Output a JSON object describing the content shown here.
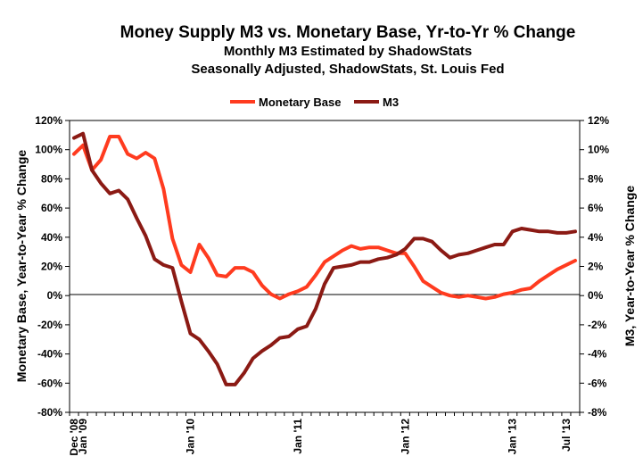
{
  "chart_data": {
    "type": "line",
    "title": "Money Supply M3 vs. Monetary Base, Yr-to-Yr % Change",
    "subtitle_1": "Monthly M3 Estimated by ShadowStats",
    "subtitle_2": "Seasonally Adjusted, ShadowStats, St. Louis Fed",
    "x_tick_labels": [
      "Dec '08",
      "Jan '09",
      "Jan '10",
      "Jan '11",
      "Jan '12",
      "Jan '13",
      "Jul '13"
    ],
    "x_tick_index": [
      0,
      1,
      13,
      25,
      37,
      49,
      55
    ],
    "ylabel_left": "Monetary Base, Year-to-Year % Change",
    "ylabel_right": "M3, Year-to-Year % Change",
    "ylim_left": [
      -80,
      120
    ],
    "ylim_right": [
      -8,
      12
    ],
    "yticks_left": [
      "120%",
      "100%",
      "80%",
      "60%",
      "40%",
      "20%",
      "0%",
      "-20%",
      "-40%",
      "-60%",
      "-80%"
    ],
    "yticks_right": [
      "12%",
      "10%",
      "8%",
      "6%",
      "4%",
      "2%",
      "0%",
      "-2%",
      "-4%",
      "-6%",
      "-8%"
    ],
    "legend_position": "top-center",
    "grid": false,
    "series": [
      {
        "name": "Monetary Base",
        "axis": "left",
        "color": "#ff3b1f",
        "values": [
          97,
          103,
          86,
          93,
          109,
          109,
          97,
          94,
          98,
          94,
          73,
          39,
          21,
          16,
          35,
          26,
          14,
          13,
          19,
          19,
          16,
          7,
          1,
          -2,
          1,
          3,
          6,
          14,
          23,
          27,
          31,
          34,
          32,
          33,
          33,
          31,
          29,
          29,
          20,
          10,
          6,
          2,
          0,
          -1,
          0,
          -1,
          -2,
          -1,
          1,
          2,
          4,
          5,
          10,
          14,
          18,
          21,
          24
        ]
      },
      {
        "name": "M3",
        "axis": "right",
        "color": "#8b1a14",
        "values": [
          10.8,
          11.1,
          8.6,
          7.7,
          7.0,
          7.2,
          6.6,
          5.3,
          4.1,
          2.5,
          2.1,
          1.9,
          -0.4,
          -2.6,
          -3.0,
          -3.8,
          -4.7,
          -6.1,
          -6.1,
          -5.3,
          -4.3,
          -3.8,
          -3.4,
          -2.9,
          -2.8,
          -2.3,
          -2.1,
          -0.9,
          0.8,
          1.9,
          2.0,
          2.1,
          2.3,
          2.3,
          2.5,
          2.6,
          2.8,
          3.2,
          3.9,
          3.9,
          3.7,
          3.1,
          2.6,
          2.8,
          2.9,
          3.1,
          3.3,
          3.5,
          3.5,
          4.4,
          4.6,
          4.5,
          4.4,
          4.4,
          4.3,
          4.3,
          4.4
        ]
      }
    ]
  }
}
